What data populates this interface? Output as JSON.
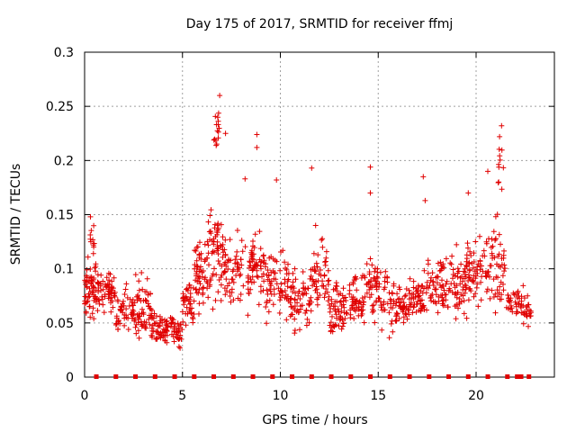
{
  "chart_data": {
    "type": "scatter",
    "title": "Day 175 of 2017, SRMTID for receiver ffmj",
    "xlabel": "GPS time / hours",
    "ylabel": "SRMTID / TECUs",
    "xlim": [
      0,
      24
    ],
    "ylim": [
      0,
      0.3
    ],
    "xticks": [
      0,
      5,
      10,
      15,
      20
    ],
    "xtick_labels": [
      "0",
      "5",
      "10",
      "15",
      "20"
    ],
    "yticks": [
      0,
      0.05,
      0.1,
      0.15,
      0.2,
      0.25,
      0.3
    ],
    "ytick_labels": [
      "0",
      "0.05",
      "0.1",
      "0.15",
      "0.2",
      "0.25",
      "0.3"
    ],
    "grid": true,
    "series_color": "#e00000",
    "marker": "plus",
    "point_groups": [
      {
        "x_start": 0.0,
        "x_end": 0.6,
        "y_min": 0.04,
        "y_max": 0.12,
        "count": 60
      },
      {
        "x_start": 0.2,
        "x_end": 0.5,
        "y_min": 0.1,
        "y_max": 0.15,
        "count": 10
      },
      {
        "x_start": 0.6,
        "x_end": 1.6,
        "y_min": 0.05,
        "y_max": 0.11,
        "count": 60
      },
      {
        "x_start": 1.6,
        "x_end": 2.6,
        "y_min": 0.03,
        "y_max": 0.09,
        "count": 55
      },
      {
        "x_start": 2.6,
        "x_end": 3.4,
        "y_min": 0.03,
        "y_max": 0.1,
        "count": 55
      },
      {
        "x_start": 3.4,
        "x_end": 4.5,
        "y_min": 0.02,
        "y_max": 0.07,
        "count": 70
      },
      {
        "x_start": 4.5,
        "x_end": 5.0,
        "y_min": 0.02,
        "y_max": 0.06,
        "count": 30
      },
      {
        "x_start": 5.0,
        "x_end": 5.6,
        "y_min": 0.04,
        "y_max": 0.1,
        "count": 40
      },
      {
        "x_start": 5.6,
        "x_end": 6.3,
        "y_min": 0.05,
        "y_max": 0.14,
        "count": 55
      },
      {
        "x_start": 6.3,
        "x_end": 7.0,
        "y_min": 0.05,
        "y_max": 0.18,
        "count": 55
      },
      {
        "x_start": 6.6,
        "x_end": 6.9,
        "y_min": 0.18,
        "y_max": 0.26,
        "count": 14
      },
      {
        "x_start": 7.0,
        "x_end": 8.5,
        "y_min": 0.05,
        "y_max": 0.15,
        "count": 80
      },
      {
        "x_start": 8.5,
        "x_end": 9.2,
        "y_min": 0.06,
        "y_max": 0.15,
        "count": 50
      },
      {
        "x_start": 9.2,
        "x_end": 10.5,
        "y_min": 0.04,
        "y_max": 0.13,
        "count": 70
      },
      {
        "x_start": 10.5,
        "x_end": 11.5,
        "y_min": 0.03,
        "y_max": 0.11,
        "count": 60
      },
      {
        "x_start": 11.5,
        "x_end": 12.5,
        "y_min": 0.04,
        "y_max": 0.14,
        "count": 60
      },
      {
        "x_start": 12.5,
        "x_end": 13.5,
        "y_min": 0.03,
        "y_max": 0.1,
        "count": 60
      },
      {
        "x_start": 13.5,
        "x_end": 14.5,
        "y_min": 0.04,
        "y_max": 0.11,
        "count": 60
      },
      {
        "x_start": 14.5,
        "x_end": 15.5,
        "y_min": 0.04,
        "y_max": 0.12,
        "count": 60
      },
      {
        "x_start": 15.5,
        "x_end": 16.5,
        "y_min": 0.03,
        "y_max": 0.1,
        "count": 60
      },
      {
        "x_start": 16.5,
        "x_end": 17.5,
        "y_min": 0.04,
        "y_max": 0.1,
        "count": 60
      },
      {
        "x_start": 17.5,
        "x_end": 18.5,
        "y_min": 0.05,
        "y_max": 0.12,
        "count": 60
      },
      {
        "x_start": 18.5,
        "x_end": 19.5,
        "y_min": 0.04,
        "y_max": 0.13,
        "count": 60
      },
      {
        "x_start": 19.5,
        "x_end": 20.5,
        "y_min": 0.05,
        "y_max": 0.14,
        "count": 60
      },
      {
        "x_start": 20.5,
        "x_end": 21.5,
        "y_min": 0.05,
        "y_max": 0.16,
        "count": 60
      },
      {
        "x_start": 21.1,
        "x_end": 21.4,
        "y_min": 0.16,
        "y_max": 0.23,
        "count": 10
      },
      {
        "x_start": 21.5,
        "x_end": 22.2,
        "y_min": 0.05,
        "y_max": 0.09,
        "count": 30
      },
      {
        "x_start": 22.2,
        "x_end": 22.8,
        "y_min": 0.04,
        "y_max": 0.09,
        "count": 30
      }
    ],
    "outliers": [
      {
        "x": 0.3,
        "y": 0.148
      },
      {
        "x": 6.9,
        "y": 0.26
      },
      {
        "x": 6.8,
        "y": 0.24
      },
      {
        "x": 7.2,
        "y": 0.225
      },
      {
        "x": 8.8,
        "y": 0.224
      },
      {
        "x": 8.8,
        "y": 0.212
      },
      {
        "x": 11.6,
        "y": 0.193
      },
      {
        "x": 14.6,
        "y": 0.194
      },
      {
        "x": 17.3,
        "y": 0.185
      },
      {
        "x": 21.3,
        "y": 0.232
      },
      {
        "x": 21.2,
        "y": 0.222
      },
      {
        "x": 20.6,
        "y": 0.19
      },
      {
        "x": 19.6,
        "y": 0.17
      },
      {
        "x": 9.8,
        "y": 0.182
      },
      {
        "x": 8.2,
        "y": 0.183
      },
      {
        "x": 11.8,
        "y": 0.14
      },
      {
        "x": 14.6,
        "y": 0.17
      },
      {
        "x": 17.4,
        "y": 0.163
      }
    ],
    "gap_markers_x": [
      0.6,
      1.6,
      2.6,
      3.6,
      4.6,
      5.6,
      6.6,
      7.6,
      8.6,
      9.6,
      10.6,
      11.6,
      12.6,
      13.6,
      14.6,
      15.6,
      16.6,
      17.6,
      18.6,
      19.6,
      20.6,
      21.6,
      22.1,
      22.3,
      22.7
    ]
  }
}
